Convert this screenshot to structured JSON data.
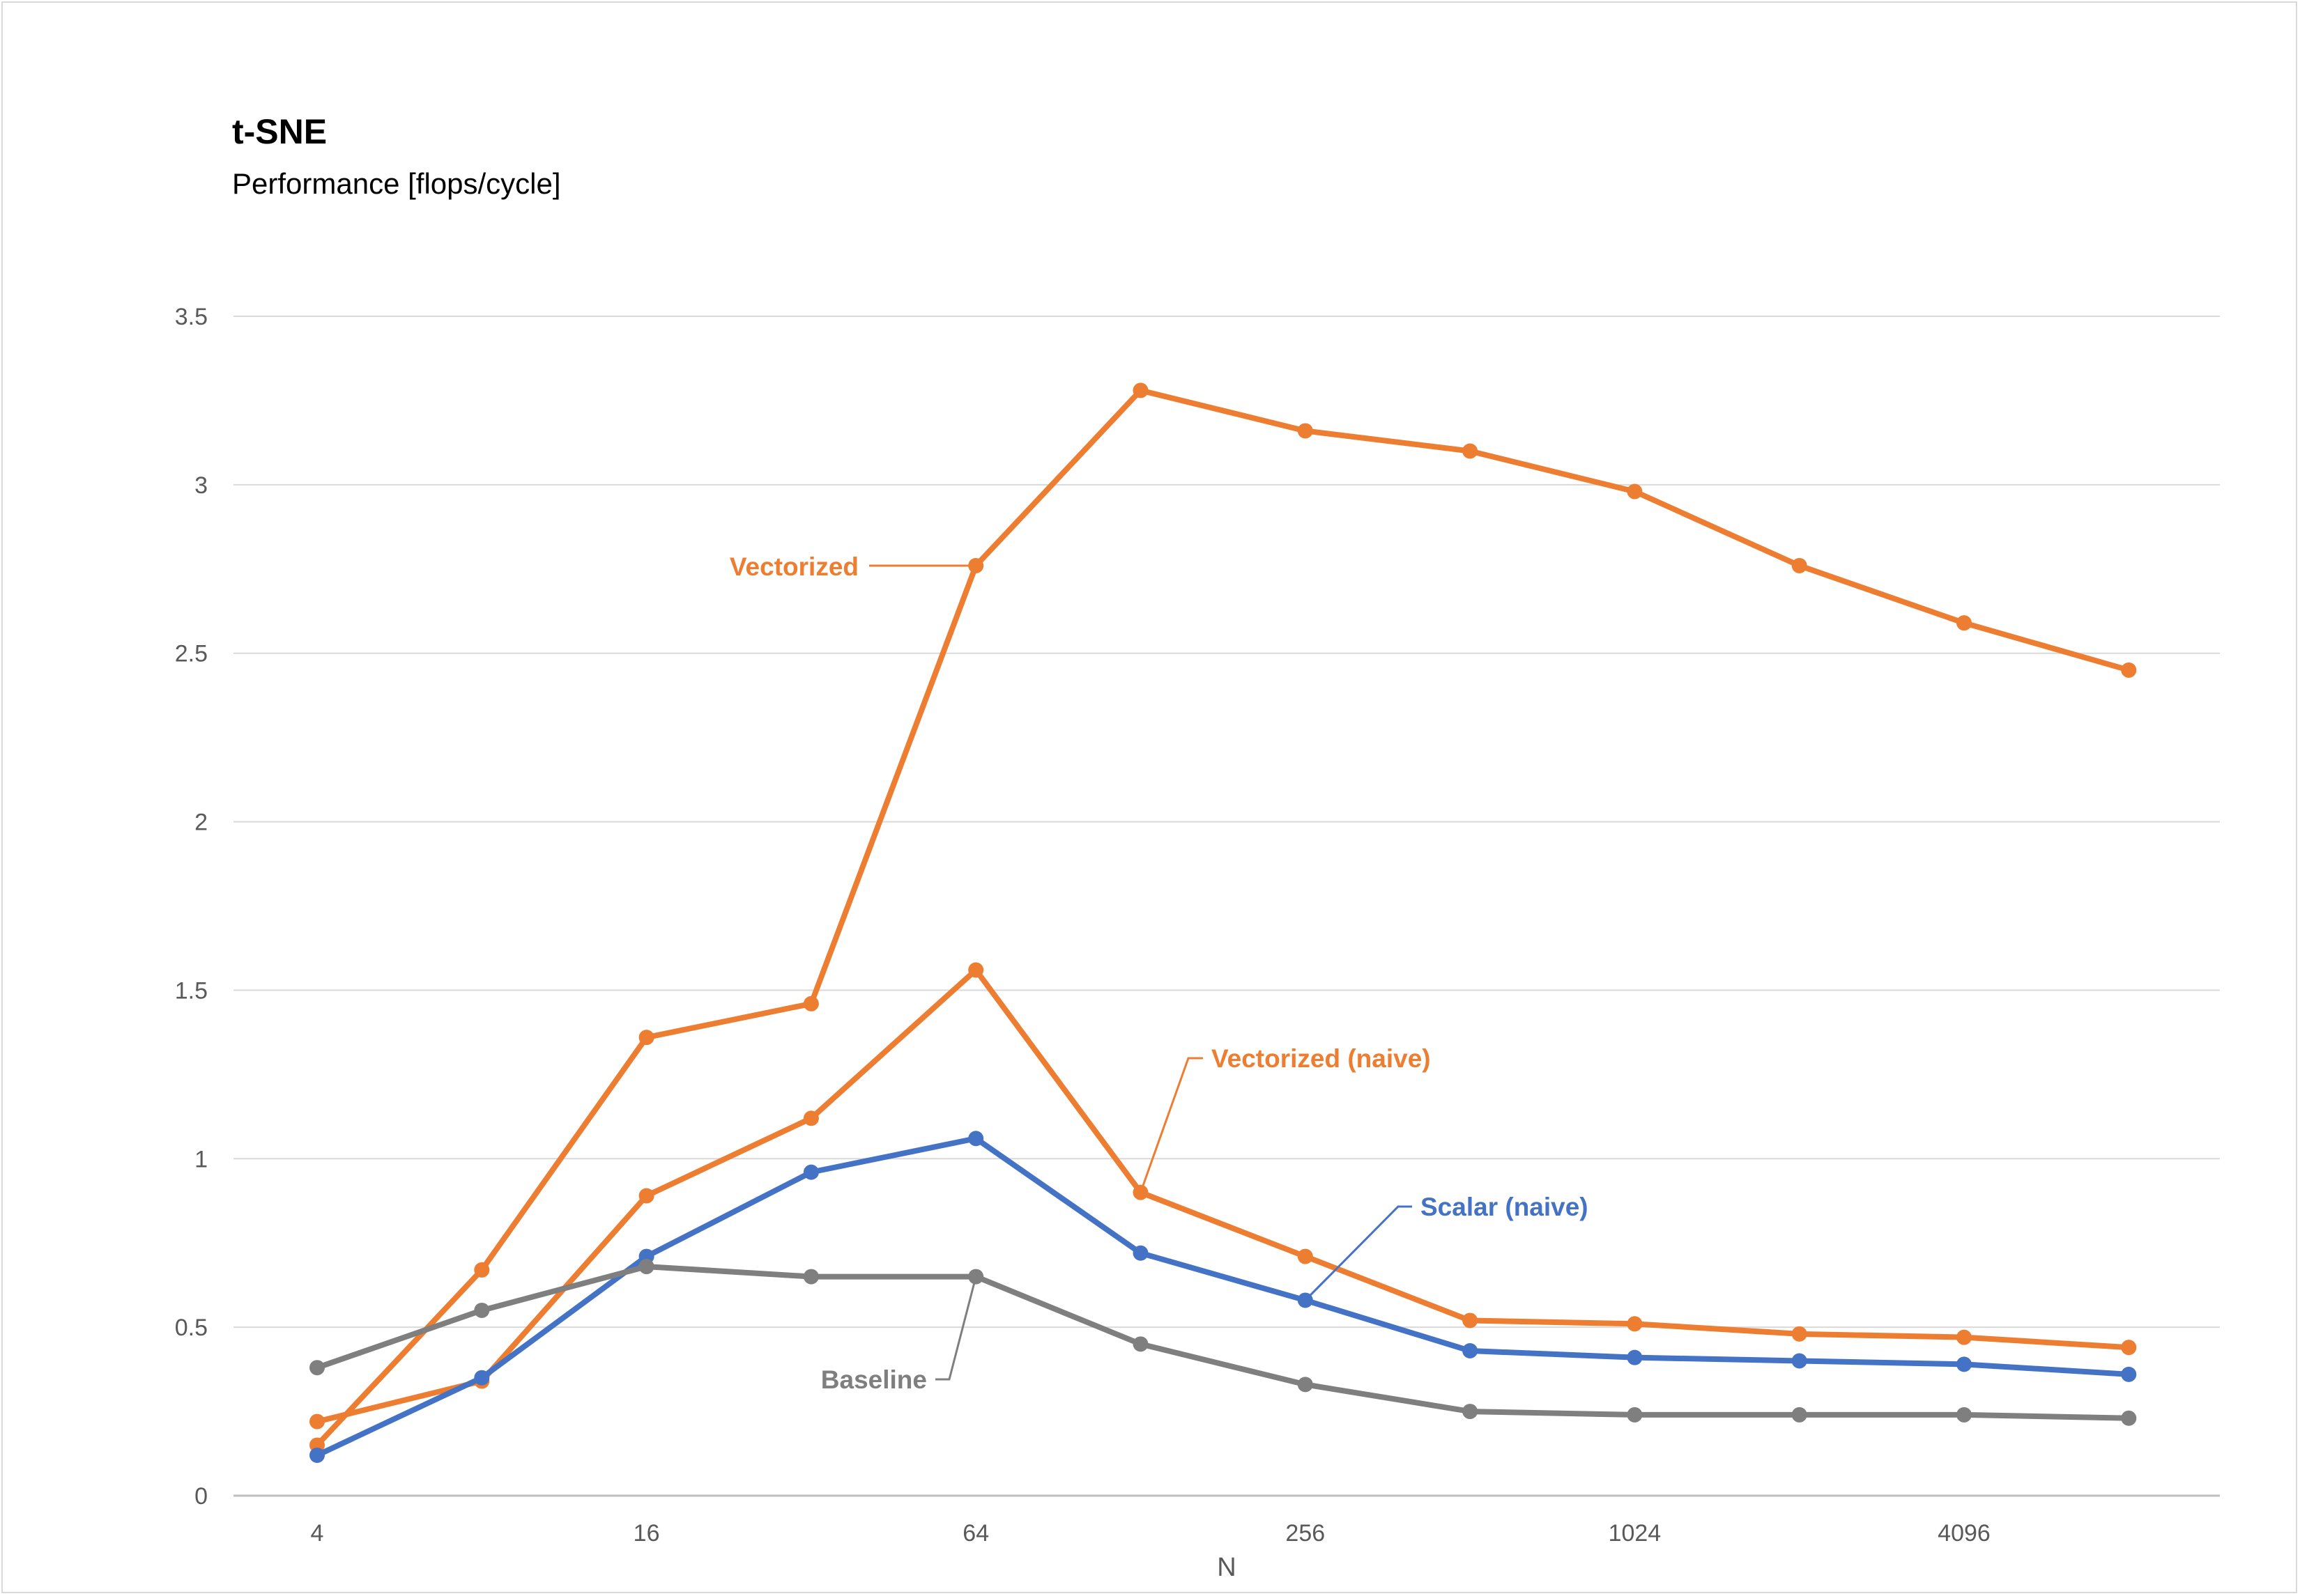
{
  "chart_data": {
    "type": "line",
    "title": "t-SNE",
    "subtitle": "Performance [flops/cycle]",
    "xlabel": "N",
    "ylabel": "",
    "x_scale": "log2",
    "x": [
      4,
      8,
      16,
      32,
      64,
      128,
      256,
      512,
      1024,
      2048,
      4096,
      8192
    ],
    "x_tick_labels": [
      "4",
      "16",
      "64",
      "256",
      "1024",
      "4096"
    ],
    "x_tick_values": [
      4,
      16,
      64,
      256,
      1024,
      4096
    ],
    "ylim": [
      0,
      3.5
    ],
    "y_ticks": [
      0,
      0.5,
      1,
      1.5,
      2,
      2.5,
      3,
      3.5
    ],
    "y_tick_labels": [
      "0",
      "0.5",
      "1",
      "1.5",
      "2",
      "2.5",
      "3",
      "3.5"
    ],
    "grid": "horizontal",
    "legend": "inline labels",
    "series": [
      {
        "name": "Vectorized",
        "color": "#ed7d31",
        "values": [
          0.15,
          0.67,
          1.36,
          1.46,
          2.76,
          3.28,
          3.16,
          3.1,
          2.98,
          2.76,
          2.59,
          2.45
        ],
        "label_anchor_index": 4
      },
      {
        "name": "Vectorized (naive)",
        "color": "#ed7d31",
        "values": [
          0.22,
          0.34,
          0.89,
          1.12,
          1.56,
          0.9,
          0.71,
          0.52,
          0.51,
          0.48,
          0.47,
          0.44
        ],
        "label_anchor_index": 5
      },
      {
        "name": "Scalar (naive)",
        "color": "#4472c4",
        "values": [
          0.12,
          0.35,
          0.71,
          0.96,
          1.06,
          0.72,
          0.58,
          0.43,
          0.41,
          0.4,
          0.39,
          0.36
        ],
        "label_anchor_index": 6
      },
      {
        "name": "Baseline",
        "color": "#7f7f7f",
        "values": [
          0.38,
          0.55,
          0.68,
          0.65,
          0.65,
          0.45,
          0.33,
          0.25,
          0.24,
          0.24,
          0.24,
          0.23
        ],
        "label_anchor_index": 4
      }
    ]
  }
}
